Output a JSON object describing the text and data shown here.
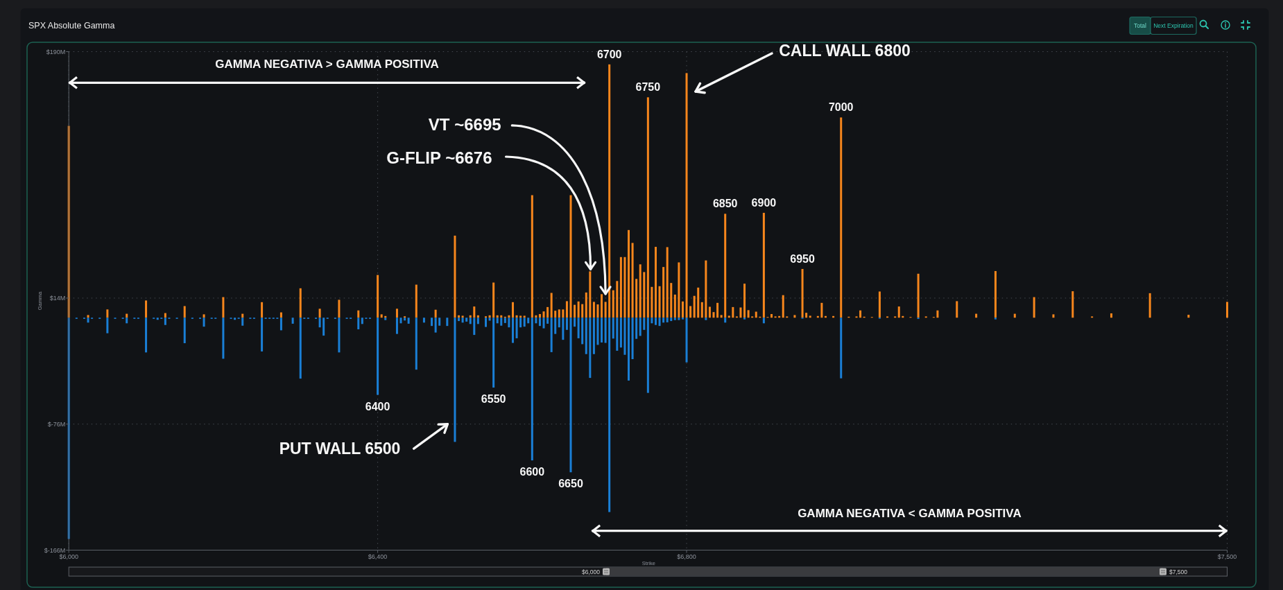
{
  "chart_data": {
    "type": "bar",
    "title": "SPX Absolute Gamma",
    "xlabel": "Strike",
    "ylabel": "Gamma",
    "xlim": [
      6000,
      7500
    ],
    "xticks": [
      {
        "value": 6000,
        "label": "$6,000"
      },
      {
        "value": 6400,
        "label": "$6,400"
      },
      {
        "value": 6800,
        "label": "$6,800"
      },
      {
        "value": 7500,
        "label": "$7,500"
      }
    ],
    "ylim": [
      -166,
      190
    ],
    "yticks": [
      {
        "value": 190,
        "label": "$190M"
      },
      {
        "value": 14,
        "label": "$14M"
      },
      {
        "value": -76,
        "label": "$-76M"
      },
      {
        "value": -166,
        "label": "$-166M"
      }
    ],
    "grid": true,
    "series": [
      {
        "color": "#f7861c",
        "x": [
          6000,
          6025,
          6050,
          6075,
          6100,
          6125,
          6150,
          6175,
          6200,
          6225,
          6250,
          6275,
          6300,
          6325,
          6350,
          6375,
          6400,
          6405,
          6410,
          6425,
          6435,
          6450,
          6475,
          6500,
          6505,
          6510,
          6520,
          6525,
          6530,
          6540,
          6545,
          6550,
          6555,
          6560,
          6565,
          6570,
          6575,
          6580,
          6585,
          6590,
          6600,
          6605,
          6610,
          6615,
          6620,
          6625,
          6630,
          6635,
          6640,
          6645,
          6650,
          6655,
          6660,
          6665,
          6670,
          6675,
          6680,
          6685,
          6690,
          6695,
          6700,
          6705,
          6710,
          6715,
          6720,
          6725,
          6730,
          6735,
          6740,
          6745,
          6750,
          6755,
          6760,
          6765,
          6770,
          6775,
          6780,
          6785,
          6790,
          6795,
          6800,
          6805,
          6810,
          6815,
          6820,
          6825,
          6830,
          6835,
          6840,
          6845,
          6850,
          6855,
          6860,
          6865,
          6870,
          6875,
          6880,
          6885,
          6890,
          6895,
          6900,
          6905,
          6910,
          6915,
          6920,
          6925,
          6930,
          6940,
          6950,
          6955,
          6960,
          6970,
          6975,
          6980,
          6990,
          7000,
          7010,
          7020,
          7025,
          7030,
          7040,
          7050,
          7060,
          7070,
          7075,
          7080,
          7090,
          7100,
          7110,
          7120,
          7125,
          7150,
          7175,
          7200,
          7225,
          7250,
          7275,
          7300,
          7325,
          7350,
          7400,
          7450,
          7500
        ],
        "values": [
          137,
          1.9,
          5.9,
          2.8,
          12.3,
          3.3,
          8.3,
          2.4,
          14.7,
          2.8,
          11.1,
          3.8,
          21,
          6.4,
          12.8,
          5.2,
          30.5,
          2.4,
          1.2,
          6.4,
          1,
          23.6,
          5.7,
          58.6,
          1.7,
          1.4,
          1.7,
          8,
          1.7,
          1,
          1.7,
          25.1,
          1.7,
          1.7,
          0.7,
          1.7,
          11.1,
          1.7,
          1.4,
          1.4,
          87.5,
          1.7,
          2.6,
          4.5,
          7.6,
          17.7,
          5,
          5.9,
          5.9,
          11.8,
          87.5,
          9.2,
          11.6,
          9.7,
          18,
          33.1,
          11.3,
          9.5,
          16.8,
          11.3,
          180.9,
          19.6,
          26.2,
          43.3,
          43.3,
          62.6,
          53.4,
          27.7,
          38.1,
          32.6,
          157.4,
          22,
          50.6,
          22.5,
          36.2,
          50.4,
          24.8,
          16.5,
          39.5,
          11.6,
          174.7,
          8.3,
          15.6,
          21.5,
          11.1,
          40.9,
          7.8,
          4,
          10.6,
          1.9,
          74.2,
          1.4,
          7.6,
          0.9,
          7.3,
          24.3,
          5.4,
          0.9,
          4.3,
          0.7,
          74.9,
          0.5,
          2.6,
          0.9,
          1.2,
          16.1,
          0.9,
          1.9,
          34.8,
          3.5,
          1.4,
          1.2,
          10.6,
          1.2,
          1.2,
          143,
          0.7,
          0.9,
          5.2,
          0.7,
          0.5,
          18.7,
          0.9,
          0.9,
          8,
          1.2,
          0.5,
          31.4,
          0.9,
          0.5,
          5.2,
          11.8,
          2.8,
          33.3,
          2.8,
          14.7,
          2.4,
          18.9,
          0.9,
          3.1,
          17.5,
          2.1,
          11.3
        ]
      },
      {
        "color": "#1a7fd6",
        "x": [
          6000,
          6010,
          6020,
          6025,
          6030,
          6040,
          6050,
          6060,
          6070,
          6075,
          6085,
          6090,
          6100,
          6110,
          6115,
          6120,
          6125,
          6130,
          6140,
          6150,
          6160,
          6170,
          6175,
          6185,
          6190,
          6200,
          6210,
          6215,
          6220,
          6225,
          6235,
          6240,
          6250,
          6255,
          6260,
          6265,
          6270,
          6275,
          6290,
          6300,
          6305,
          6310,
          6320,
          6325,
          6330,
          6335,
          6345,
          6350,
          6360,
          6365,
          6375,
          6380,
          6385,
          6390,
          6400,
          6410,
          6425,
          6430,
          6435,
          6440,
          6450,
          6460,
          6470,
          6475,
          6480,
          6490,
          6500,
          6505,
          6510,
          6515,
          6520,
          6525,
          6530,
          6540,
          6545,
          6550,
          6555,
          6560,
          6565,
          6570,
          6575,
          6580,
          6585,
          6590,
          6595,
          6600,
          6605,
          6610,
          6615,
          6620,
          6625,
          6630,
          6635,
          6640,
          6645,
          6650,
          6655,
          6660,
          6665,
          6670,
          6675,
          6680,
          6685,
          6690,
          6695,
          6700,
          6705,
          6710,
          6715,
          6720,
          6725,
          6730,
          6735,
          6740,
          6745,
          6750,
          6755,
          6760,
          6765,
          6770,
          6775,
          6780,
          6785,
          6790,
          6795,
          6800,
          6825,
          6850,
          6875,
          6900,
          6950,
          7000,
          7050,
          7100,
          7200
        ],
        "values": [
          -158,
          -0.8,
          -0.8,
          -3.5,
          -0.8,
          -0.8,
          -11.1,
          -0.8,
          -0.8,
          -4,
          -0.8,
          -0.8,
          -24.8,
          -0.8,
          -1.5,
          -0.8,
          -5.2,
          -0.8,
          -0.8,
          -18.2,
          -0.8,
          -0.8,
          -6.4,
          -0.8,
          -0.8,
          -29.3,
          -0.8,
          -1.5,
          -0.8,
          -5.7,
          -0.8,
          -0.8,
          -24.1,
          -0.8,
          -0.8,
          -0.8,
          -0.8,
          -9,
          -4.3,
          -43.5,
          -0.8,
          -0.8,
          -0.8,
          -6.9,
          -12.8,
          -0.8,
          -0.8,
          -24.8,
          -0.8,
          -0.8,
          -8.3,
          -4.5,
          -0.8,
          -0.8,
          -55.1,
          -1.7,
          -11.6,
          -4,
          -2,
          -4.3,
          -37.1,
          -3.5,
          -5.9,
          -10.6,
          -5.7,
          -5.9,
          -88.7,
          -2.4,
          -3.5,
          -2.8,
          -4.5,
          -12.3,
          -4.5,
          -6.6,
          -2.1,
          -49.9,
          -4,
          -5.7,
          -3.8,
          -6.9,
          -18,
          -14.7,
          -6.9,
          -6.4,
          -4,
          -101.9,
          -4,
          -5.9,
          -7.6,
          -4.3,
          -24.6,
          -11.6,
          -6.9,
          -15.8,
          -8.7,
          -110.4,
          -6.4,
          -14.7,
          -18.9,
          -26,
          -43,
          -26,
          -19.4,
          -17.7,
          -18,
          -138.8,
          -14.9,
          -23.6,
          -21.3,
          -26.5,
          -44.9,
          -29.6,
          -15.1,
          -13,
          -8.7,
          -53.7,
          -4,
          -5.2,
          -5.9,
          -3.5,
          -3.3,
          -2.4,
          -1.7,
          -1.7,
          -1.2,
          -31.9,
          -1.7,
          -3.5,
          -1.2,
          -4,
          -0.7,
          -43.3,
          -0.7,
          -0.9,
          -1.2
        ]
      }
    ],
    "annotations": [
      "GAMMA NEGATIVA > GAMMA POSITIVA",
      "GAMMA NEGATIVA < GAMMA POSITIVA",
      "CALL WALL 6800",
      "PUT WALL 6500",
      {
        "text": "VT ~6695",
        "x": 6695,
        "y": 17
      },
      {
        "text": "G-FLIP ~6676",
        "x": 6675,
        "y": 33.1
      },
      {
        "text": "6700",
        "x": 6700,
        "y": 180.9
      },
      {
        "text": "6750",
        "x": 6750,
        "y": 157.4
      },
      {
        "text": "7000",
        "x": 7000,
        "y": 143
      },
      {
        "text": "6850",
        "x": 6850,
        "y": 74.2
      },
      {
        "text": "6900",
        "x": 6900,
        "y": 74.9
      },
      {
        "text": "6950",
        "x": 6950,
        "y": 34.8
      },
      {
        "text": "6400",
        "x": 6400,
        "y": -55.1
      },
      {
        "text": "6550",
        "x": 6550,
        "y": -49.9
      },
      {
        "text": "6600",
        "x": 6600,
        "y": -101.9
      },
      {
        "text": "6650",
        "x": 6650,
        "y": -110.4
      },
      "Total",
      "Next Expiration"
    ]
  }
}
